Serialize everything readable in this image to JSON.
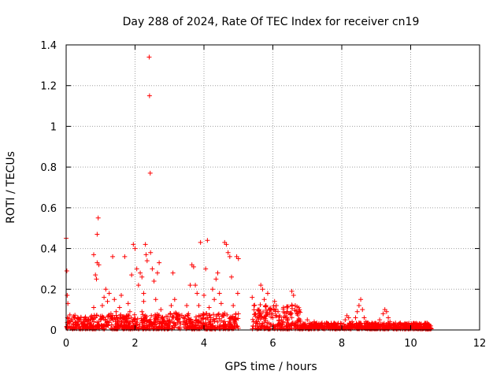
{
  "chart_data": {
    "type": "scatter",
    "title": "Day 288 of 2024, Rate Of TEC Index for receiver cn19",
    "xlabel": "GPS time / hours",
    "ylabel": "ROTI / TECUs",
    "xlim": [
      0,
      12
    ],
    "ylim": [
      0,
      1.4
    ],
    "xticks": [
      "0",
      "2",
      "4",
      "6",
      "8",
      "10",
      "12"
    ],
    "yticks": [
      "0",
      "0.2",
      "0.4",
      "0.6",
      "0.8",
      "1",
      "1.2",
      "1.4"
    ],
    "grid": true,
    "marker": "+",
    "color": "#ff0000",
    "series": [
      {
        "name": "ROTI",
        "points": [
          [
            0.0,
            0.45
          ],
          [
            0.02,
            0.29
          ],
          [
            0.03,
            0.17
          ],
          [
            0.05,
            0.13
          ],
          [
            0.04,
            0.06
          ],
          [
            0.1,
            0.04
          ],
          [
            0.15,
            0.05
          ],
          [
            0.2,
            0.03
          ],
          [
            0.25,
            0.06
          ],
          [
            0.3,
            0.04
          ],
          [
            0.35,
            0.02
          ],
          [
            0.4,
            0.05
          ],
          [
            0.45,
            0.03
          ],
          [
            0.5,
            0.02
          ],
          [
            0.55,
            0.04
          ],
          [
            0.6,
            0.03
          ],
          [
            0.65,
            0.05
          ],
          [
            0.7,
            0.02
          ],
          [
            0.8,
            0.37
          ],
          [
            0.85,
            0.27
          ],
          [
            0.88,
            0.25
          ],
          [
            0.9,
            0.47
          ],
          [
            0.93,
            0.55
          ],
          [
            0.9,
            0.33
          ],
          [
            0.95,
            0.32
          ],
          [
            0.8,
            0.11
          ],
          [
            0.85,
            0.06
          ],
          [
            0.95,
            0.04
          ],
          [
            1.0,
            0.05
          ],
          [
            1.05,
            0.12
          ],
          [
            1.1,
            0.16
          ],
          [
            1.15,
            0.2
          ],
          [
            1.2,
            0.14
          ],
          [
            1.25,
            0.18
          ],
          [
            1.3,
            0.08
          ],
          [
            1.35,
            0.36
          ],
          [
            1.4,
            0.15
          ],
          [
            1.45,
            0.09
          ],
          [
            1.5,
            0.05
          ],
          [
            1.55,
            0.11
          ],
          [
            1.6,
            0.17
          ],
          [
            1.65,
            0.06
          ],
          [
            1.7,
            0.36
          ],
          [
            1.75,
            0.07
          ],
          [
            1.8,
            0.13
          ],
          [
            1.85,
            0.09
          ],
          [
            1.9,
            0.27
          ],
          [
            1.95,
            0.42
          ],
          [
            2.0,
            0.4
          ],
          [
            2.05,
            0.3
          ],
          [
            2.1,
            0.22
          ],
          [
            2.15,
            0.28
          ],
          [
            2.2,
            0.26
          ],
          [
            2.25,
            0.18
          ],
          [
            2.3,
            0.42
          ],
          [
            2.32,
            0.37
          ],
          [
            2.35,
            0.34
          ],
          [
            2.25,
            0.14
          ],
          [
            2.2,
            0.09
          ],
          [
            2.3,
            0.06
          ],
          [
            2.35,
            0.04
          ],
          [
            2.41,
            1.34
          ],
          [
            2.42,
            1.15
          ],
          [
            2.44,
            0.77
          ],
          [
            2.45,
            0.38
          ],
          [
            2.5,
            0.3
          ],
          [
            2.55,
            0.24
          ],
          [
            2.6,
            0.15
          ],
          [
            2.65,
            0.28
          ],
          [
            2.7,
            0.33
          ],
          [
            2.75,
            0.1
          ],
          [
            2.8,
            0.06
          ],
          [
            2.85,
            0.04
          ],
          [
            2.9,
            0.03
          ],
          [
            3.0,
            0.05
          ],
          [
            3.05,
            0.12
          ],
          [
            3.1,
            0.28
          ],
          [
            3.15,
            0.15
          ],
          [
            3.2,
            0.08
          ],
          [
            3.25,
            0.05
          ],
          [
            3.3,
            0.04
          ],
          [
            3.4,
            0.06
          ],
          [
            3.5,
            0.12
          ],
          [
            3.55,
            0.08
          ],
          [
            3.6,
            0.22
          ],
          [
            3.65,
            0.32
          ],
          [
            3.7,
            0.31
          ],
          [
            3.75,
            0.22
          ],
          [
            3.8,
            0.18
          ],
          [
            3.85,
            0.12
          ],
          [
            3.9,
            0.43
          ],
          [
            4.0,
            0.17
          ],
          [
            4.05,
            0.3
          ],
          [
            4.1,
            0.44
          ],
          [
            4.15,
            0.11
          ],
          [
            4.2,
            0.06
          ],
          [
            4.25,
            0.2
          ],
          [
            4.3,
            0.15
          ],
          [
            4.35,
            0.25
          ],
          [
            4.4,
            0.28
          ],
          [
            4.45,
            0.18
          ],
          [
            4.5,
            0.13
          ],
          [
            4.55,
            0.07
          ],
          [
            4.6,
            0.43
          ],
          [
            4.65,
            0.42
          ],
          [
            4.7,
            0.38
          ],
          [
            4.75,
            0.36
          ],
          [
            4.8,
            0.26
          ],
          [
            4.85,
            0.12
          ],
          [
            4.9,
            0.05
          ],
          [
            4.95,
            0.36
          ],
          [
            5.0,
            0.35
          ],
          [
            4.98,
            0.18
          ],
          [
            5.0,
            0.08
          ],
          [
            4.9,
            0.03
          ],
          [
            5.4,
            0.16
          ],
          [
            5.45,
            0.12
          ],
          [
            5.5,
            0.08
          ],
          [
            5.55,
            0.06
          ],
          [
            5.6,
            0.1
          ],
          [
            5.65,
            0.22
          ],
          [
            5.7,
            0.2
          ],
          [
            5.75,
            0.15
          ],
          [
            5.8,
            0.12
          ],
          [
            5.85,
            0.18
          ],
          [
            5.9,
            0.1
          ],
          [
            5.95,
            0.08
          ],
          [
            6.0,
            0.06
          ],
          [
            6.05,
            0.14
          ],
          [
            6.1,
            0.12
          ],
          [
            6.15,
            0.09
          ],
          [
            6.2,
            0.07
          ],
          [
            6.25,
            0.05
          ],
          [
            6.3,
            0.04
          ],
          [
            6.4,
            0.06
          ],
          [
            6.5,
            0.08
          ],
          [
            6.55,
            0.19
          ],
          [
            6.6,
            0.17
          ],
          [
            6.65,
            0.12
          ],
          [
            6.7,
            0.08
          ],
          [
            6.75,
            0.05
          ],
          [
            6.8,
            0.04
          ],
          [
            6.9,
            0.03
          ],
          [
            7.0,
            0.05
          ],
          [
            7.1,
            0.03
          ],
          [
            7.2,
            0.04
          ],
          [
            7.3,
            0.02
          ],
          [
            7.4,
            0.03
          ],
          [
            7.5,
            0.02
          ],
          [
            7.6,
            0.03
          ],
          [
            7.7,
            0.02
          ],
          [
            7.8,
            0.03
          ],
          [
            7.9,
            0.02
          ],
          [
            8.0,
            0.03
          ],
          [
            8.1,
            0.05
          ],
          [
            8.15,
            0.07
          ],
          [
            8.2,
            0.06
          ],
          [
            8.3,
            0.04
          ],
          [
            8.4,
            0.06
          ],
          [
            8.45,
            0.09
          ],
          [
            8.5,
            0.12
          ],
          [
            8.55,
            0.15
          ],
          [
            8.6,
            0.1
          ],
          [
            8.65,
            0.06
          ],
          [
            8.7,
            0.04
          ],
          [
            8.8,
            0.03
          ],
          [
            8.9,
            0.02
          ],
          [
            9.0,
            0.03
          ],
          [
            9.1,
            0.05
          ],
          [
            9.2,
            0.08
          ],
          [
            9.25,
            0.1
          ],
          [
            9.3,
            0.09
          ],
          [
            9.35,
            0.06
          ],
          [
            9.4,
            0.04
          ],
          [
            9.5,
            0.03
          ],
          [
            9.6,
            0.02
          ],
          [
            9.7,
            0.03
          ],
          [
            9.8,
            0.02
          ],
          [
            9.9,
            0.03
          ],
          [
            10.0,
            0.02
          ],
          [
            10.1,
            0.03
          ],
          [
            10.2,
            0.02
          ],
          [
            10.3,
            0.03
          ],
          [
            10.4,
            0.02
          ],
          [
            10.5,
            0.03
          ],
          [
            10.58,
            0.02
          ]
        ]
      }
    ],
    "dense_bands": [
      {
        "x0": 0.0,
        "x1": 2.5,
        "ymax": 0.07
      },
      {
        "x0": 2.5,
        "x1": 5.0,
        "ymax": 0.08
      },
      {
        "x0": 5.4,
        "x1": 6.8,
        "ymax": 0.12
      },
      {
        "x0": 6.8,
        "x1": 10.6,
        "ymax": 0.03
      }
    ]
  }
}
